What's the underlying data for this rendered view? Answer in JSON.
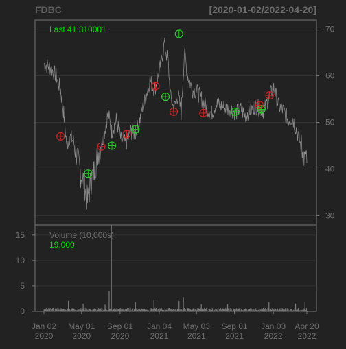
{
  "chart_data": {
    "type": "line",
    "symbol": "FDBC",
    "date_range": "[2020-01-02/2022-04-20]",
    "last_label": "Last 41.310001",
    "volume_label": "Volume (10,000s):",
    "volume_last": "19,000",
    "price_axis": {
      "ylim": [
        28,
        72
      ],
      "ticks": [
        30,
        40,
        50,
        60,
        70
      ]
    },
    "volume_axis": {
      "ylim": [
        0,
        17
      ],
      "ticks": [
        0,
        5,
        10,
        15
      ]
    },
    "x_axis": {
      "start": "2020-01-02",
      "end": "2022-04-20",
      "ticks": [
        {
          "date": "2020-01-02",
          "label": "Jan 02\n2020"
        },
        {
          "date": "2020-05-01",
          "label": "May 01\n2020"
        },
        {
          "date": "2020-09-01",
          "label": "Sep 01\n2020"
        },
        {
          "date": "2021-01-04",
          "label": "Jan 04\n2021"
        },
        {
          "date": "2021-05-03",
          "label": "May 03\n2021"
        },
        {
          "date": "2021-09-01",
          "label": "Sep 01\n2021"
        },
        {
          "date": "2022-01-03",
          "label": "Jan 03\n2022"
        },
        {
          "date": "2022-04-20",
          "label": "Apr 20\n2022"
        }
      ]
    },
    "price_series": {
      "name": "FDBC",
      "points": [
        [
          "2020-01-02",
          62.5
        ],
        [
          "2020-01-20",
          62.0
        ],
        [
          "2020-02-10",
          60.0
        ],
        [
          "2020-02-24",
          57.0
        ],
        [
          "2020-03-05",
          52.0
        ],
        [
          "2020-03-15",
          45.0
        ],
        [
          "2020-03-25",
          47.0
        ],
        [
          "2020-04-05",
          46.0
        ],
        [
          "2020-04-15",
          43.0
        ],
        [
          "2020-04-28",
          39.0
        ],
        [
          "2020-05-10",
          37.0
        ],
        [
          "2020-05-20",
          33.0
        ],
        [
          "2020-06-02",
          38.0
        ],
        [
          "2020-06-10",
          39.5
        ],
        [
          "2020-06-25",
          44.0
        ],
        [
          "2020-07-10",
          47.0
        ],
        [
          "2020-07-25",
          52.0
        ],
        [
          "2020-08-05",
          48.0
        ],
        [
          "2020-08-20",
          50.5
        ],
        [
          "2020-09-05",
          46.0
        ],
        [
          "2020-09-20",
          45.5
        ],
        [
          "2020-10-05",
          48.0
        ],
        [
          "2020-10-20",
          47.5
        ],
        [
          "2020-11-05",
          51.0
        ],
        [
          "2020-11-20",
          55.0
        ],
        [
          "2020-12-05",
          59.0
        ],
        [
          "2020-12-20",
          57.0
        ],
        [
          "2021-01-05",
          61.0
        ],
        [
          "2021-01-20",
          67.0
        ],
        [
          "2021-02-01",
          63.0
        ],
        [
          "2021-02-10",
          55.0
        ],
        [
          "2021-02-20",
          53.0
        ],
        [
          "2021-03-05",
          56.0
        ],
        [
          "2021-03-15",
          52.0
        ],
        [
          "2021-03-25",
          65.0
        ],
        [
          "2021-04-05",
          60.0
        ],
        [
          "2021-04-20",
          57.0
        ],
        [
          "2021-05-05",
          56.5
        ],
        [
          "2021-05-20",
          55.0
        ],
        [
          "2021-06-05",
          53.0
        ],
        [
          "2021-06-20",
          52.0
        ],
        [
          "2021-07-05",
          54.0
        ],
        [
          "2021-07-20",
          53.5
        ],
        [
          "2021-08-05",
          53.0
        ],
        [
          "2021-08-20",
          53.0
        ],
        [
          "2021-09-05",
          52.0
        ],
        [
          "2021-09-20",
          53.0
        ],
        [
          "2021-10-05",
          51.5
        ],
        [
          "2021-10-20",
          52.5
        ],
        [
          "2021-11-05",
          53.5
        ],
        [
          "2021-11-20",
          53.0
        ],
        [
          "2021-12-05",
          52.5
        ],
        [
          "2021-12-20",
          55.5
        ],
        [
          "2022-01-05",
          57.5
        ],
        [
          "2022-01-20",
          53.5
        ],
        [
          "2022-02-05",
          52.5
        ],
        [
          "2022-02-20",
          50.5
        ],
        [
          "2022-03-05",
          51.0
        ],
        [
          "2022-03-20",
          48.0
        ],
        [
          "2022-04-05",
          44.0
        ],
        [
          "2022-04-20",
          41.31
        ]
      ]
    },
    "signals": {
      "buy": [
        {
          "date": "2020-05-22",
          "price": 39.0
        },
        {
          "date": "2020-08-06",
          "price": 45.0
        },
        {
          "date": "2020-10-20",
          "price": 48.5
        },
        {
          "date": "2021-01-24",
          "price": 55.5
        },
        {
          "date": "2021-03-08",
          "price": 69.0
        },
        {
          "date": "2021-09-03",
          "price": 52.3
        },
        {
          "date": "2021-11-26",
          "price": 52.8
        }
      ],
      "sell": [
        {
          "date": "2020-02-24",
          "price": 47.0
        },
        {
          "date": "2020-07-03",
          "price": 44.8
        },
        {
          "date": "2020-09-22",
          "price": 47.5
        },
        {
          "date": "2020-12-23",
          "price": 57.8
        },
        {
          "date": "2021-02-19",
          "price": 52.3
        },
        {
          "date": "2021-05-25",
          "price": 52.0
        },
        {
          "date": "2021-11-20",
          "price": 53.7
        },
        {
          "date": "2021-12-22",
          "price": 55.8
        }
      ]
    },
    "volume_series": {
      "name": "Volume (10,000s)",
      "baseline": 0.35,
      "spikes": [
        {
          "date": "2020-03-20",
          "value": 2.0
        },
        {
          "date": "2020-05-06",
          "value": 1.5
        },
        {
          "date": "2020-07-15",
          "value": 1.3
        },
        {
          "date": "2020-07-28",
          "value": 4.0
        },
        {
          "date": "2020-08-04",
          "value": 17.0
        },
        {
          "date": "2020-10-20",
          "value": 1.8
        },
        {
          "date": "2020-12-18",
          "value": 2.2
        },
        {
          "date": "2021-03-08",
          "value": 2.0
        },
        {
          "date": "2021-03-22",
          "value": 2.8
        },
        {
          "date": "2021-05-18",
          "value": 1.4
        },
        {
          "date": "2021-08-10",
          "value": 1.4
        },
        {
          "date": "2021-12-20",
          "value": 1.8
        },
        {
          "date": "2022-03-15",
          "value": 1.5
        },
        {
          "date": "2022-04-14",
          "value": 1.9
        }
      ]
    },
    "colors": {
      "background": "#222222",
      "panel_border": "#777777",
      "grid": "#333333",
      "price_line": "#8a8a8a",
      "volume_bars": "#7a7a7a",
      "label_text": "#6e6e6e",
      "title_text": "#5f5f5f",
      "accent_green": "#00dd00",
      "buy_marker": "#22cc22",
      "sell_marker": "#cc2222"
    },
    "grid": true
  }
}
